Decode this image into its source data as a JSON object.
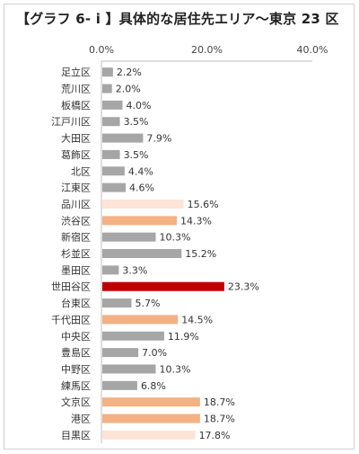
{
  "chart_data": {
    "type": "bar",
    "orientation": "horizontal",
    "title": "【グラフ 6- i 】具体的な居住先エリア～東京 23 区",
    "xlim": [
      0,
      40
    ],
    "ticks": [
      0,
      20,
      40
    ],
    "tick_labels": [
      "0.0%",
      "20.0%",
      "40.0%"
    ],
    "categories": [
      "足立区",
      "荒川区",
      "板橋区",
      "江戸川区",
      "大田区",
      "葛飾区",
      "北区",
      "江東区",
      "品川区",
      "渋谷区",
      "新宿区",
      "杉並区",
      "墨田区",
      "世田谷区",
      "台東区",
      "千代田区",
      "中央区",
      "豊島区",
      "中野区",
      "練馬区",
      "文京区",
      "港区",
      "目黒区"
    ],
    "values": [
      2.2,
      2.0,
      4.0,
      3.5,
      7.9,
      3.5,
      4.4,
      4.6,
      15.6,
      14.3,
      10.3,
      15.2,
      3.3,
      23.3,
      5.7,
      14.5,
      11.9,
      7.0,
      10.3,
      6.8,
      18.7,
      18.7,
      17.8
    ],
    "value_labels": [
      "2.2%",
      "2.0%",
      "4.0%",
      "3.5%",
      "7.9%",
      "3.5%",
      "4.4%",
      "4.6%",
      "15.6%",
      "14.3%",
      "10.3%",
      "15.2%",
      "3.3%",
      "23.3%",
      "5.7%",
      "14.5%",
      "11.9%",
      "7.0%",
      "10.3%",
      "6.8%",
      "18.7%",
      "18.7%",
      "17.8%"
    ],
    "bar_colors": [
      "#a6a6a6",
      "#a6a6a6",
      "#a6a6a6",
      "#a6a6a6",
      "#a6a6a6",
      "#a6a6a6",
      "#a6a6a6",
      "#a6a6a6",
      "#fce4d6",
      "#f4b183",
      "#a6a6a6",
      "#a6a6a6",
      "#a6a6a6",
      "#c00000",
      "#a6a6a6",
      "#f4b183",
      "#a6a6a6",
      "#a6a6a6",
      "#a6a6a6",
      "#a6a6a6",
      "#f4b183",
      "#f4b183",
      "#fce4d6"
    ],
    "grid": false
  }
}
